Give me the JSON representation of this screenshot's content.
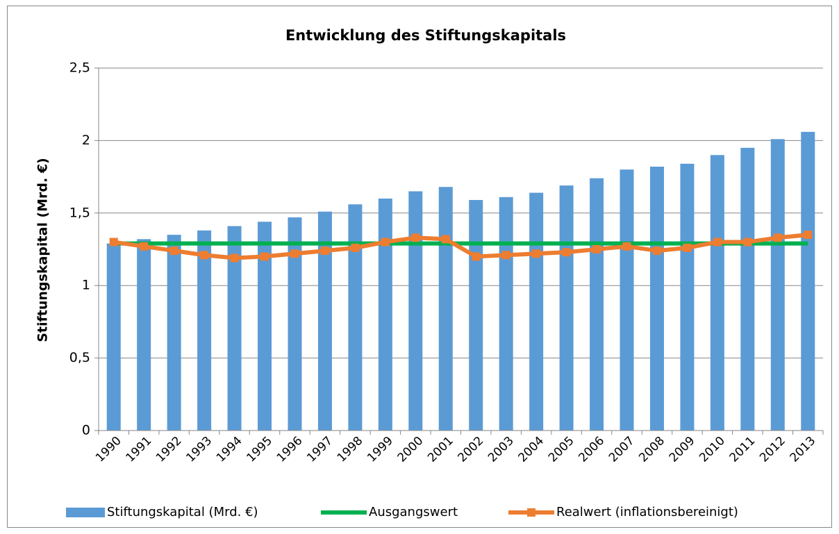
{
  "chart_data": {
    "type": "combo",
    "title": "Entwicklung des Stiftungskapitals",
    "y_label": "Stiftungskapital (Mrd. €)",
    "categories": [
      "1990",
      "1991",
      "1992",
      "1993",
      "1994",
      "1995",
      "1996",
      "1997",
      "1998",
      "1999",
      "2000",
      "2001",
      "2002",
      "2003",
      "2004",
      "2005",
      "2006",
      "2007",
      "2008",
      "2009",
      "2010",
      "2011",
      "2012",
      "2013"
    ],
    "series": [
      {
        "name": "Stiftungskapital (Mrd. €)",
        "type": "bar",
        "color": "#5b9bd5",
        "values": [
          1.29,
          1.32,
          1.35,
          1.38,
          1.41,
          1.44,
          1.47,
          1.51,
          1.56,
          1.6,
          1.65,
          1.68,
          1.59,
          1.61,
          1.64,
          1.69,
          1.74,
          1.8,
          1.82,
          1.84,
          1.9,
          1.95,
          2.01,
          2.06
        ]
      },
      {
        "name": "Ausgangswert",
        "type": "line",
        "color": "#00b050",
        "marker": false,
        "values": [
          1.29,
          1.29,
          1.29,
          1.29,
          1.29,
          1.29,
          1.29,
          1.29,
          1.29,
          1.29,
          1.29,
          1.29,
          1.29,
          1.29,
          1.29,
          1.29,
          1.29,
          1.29,
          1.29,
          1.29,
          1.29,
          1.29,
          1.29,
          1.29
        ]
      },
      {
        "name": "Realwert (inflationsbereinigt)",
        "type": "line",
        "color": "#ed7d31",
        "marker": true,
        "values": [
          1.3,
          1.27,
          1.24,
          1.21,
          1.19,
          1.2,
          1.22,
          1.24,
          1.26,
          1.3,
          1.33,
          1.32,
          1.2,
          1.21,
          1.22,
          1.23,
          1.25,
          1.27,
          1.24,
          1.26,
          1.3,
          1.3,
          1.33,
          1.35
        ]
      }
    ],
    "ylim": [
      0,
      2.5
    ],
    "yticks": [
      0,
      {
        "value": 0.5,
        "label": "0,5"
      },
      1,
      {
        "value": 1.5,
        "label": "1,5"
      },
      2,
      {
        "value": 2.5,
        "label": "2,5"
      }
    ],
    "grid": true,
    "legend": "bottom"
  }
}
